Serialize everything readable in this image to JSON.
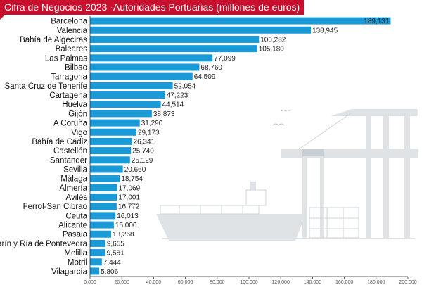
{
  "title": "Cifra de Negocios 2023 ·Autoridades Portuarias (millones de euros)",
  "colors": {
    "bar": "#1a9ad6",
    "title_bg": "#c8102e",
    "illustration": "#dfe3e6"
  },
  "illustration": "port-cranes-and-ship-icon",
  "chart_data": {
    "type": "bar",
    "orientation": "horizontal",
    "title": "Cifra de Negocios 2023 ·Autoridades Portuarias (millones de euros)",
    "xlabel": "",
    "ylabel": "",
    "xlim": [
      0,
      200000
    ],
    "xticks": [
      "0,000",
      "20,000",
      "40,000",
      "60,000",
      "80,000",
      "100,000",
      "120,000",
      "140,000",
      "160,000",
      "180,000",
      "200,000"
    ],
    "grid": false,
    "legend": "none",
    "categories": [
      "Barcelona",
      "Valencia",
      "Bahía de Algeciras",
      "Baleares",
      "Las Palmas",
      "Bilbao",
      "Tarragona",
      "Santa Cruz de Tenerife",
      "Cartagena",
      "Huelva",
      "Gijón",
      "A Coruña",
      "Vigo",
      "Bahía de Cádiz",
      "Castellón",
      "Santander",
      "Sevilla",
      "Málaga",
      "Almería",
      "Avilés",
      "Ferrol-San Cibrao",
      "Ceuta",
      "Alicante",
      "Pasaia",
      "Marín y Ría de Pontevedra",
      "Melilla",
      "Motril",
      "Vilagarcía"
    ],
    "values": [
      189131,
      138945,
      106282,
      105180,
      77099,
      68760,
      64509,
      52054,
      47223,
      44514,
      38873,
      31290,
      29173,
      26341,
      25740,
      25129,
      20660,
      18754,
      17069,
      17001,
      16772,
      16013,
      15000,
      13268,
      9655,
      9581,
      7444,
      5806
    ],
    "value_labels": [
      "189,131",
      "138,945",
      "106,282",
      "105,180",
      "77,099",
      "68,760",
      "64,509",
      "52,054",
      "47,223",
      "44,514",
      "38,873",
      "31,290",
      "29,173",
      "26,341",
      "25,740",
      "25,129",
      "20,660",
      "18,754",
      "17,069",
      "17,001",
      "16,772",
      "16,013",
      "15,000",
      "13,268",
      "9,655",
      "9,581",
      "7,444",
      "5,806"
    ]
  }
}
